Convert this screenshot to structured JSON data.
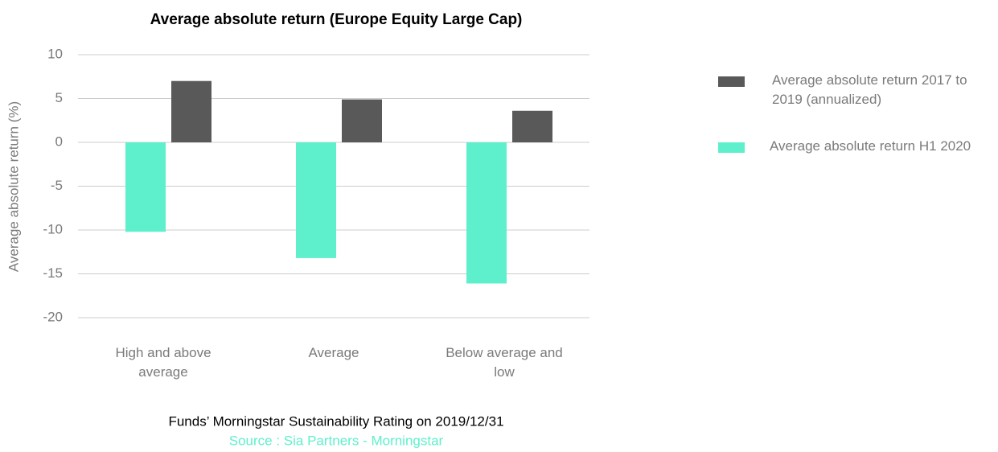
{
  "chart_data": {
    "type": "bar",
    "title": "Average absolute return (Europe Equity Large Cap)",
    "y_label": "Average absolute return  (%)",
    "x_label": "Funds’ Morningstar Sustainability Rating on 2019/12/31",
    "source": "Source : Sia Partners - Morningstar",
    "categories": [
      "High and above average",
      "Average",
      "Below average and low"
    ],
    "series": [
      {
        "name": "Average absolute return 2017 to 2019 (annualized)",
        "color": "#595959",
        "values": [
          7.0,
          4.9,
          3.6
        ]
      },
      {
        "name": "Average absolute return H1 2020",
        "color": "#5ef0cc",
        "values": [
          -10.2,
          -13.2,
          -16.1
        ]
      }
    ],
    "ylim": [
      -20,
      10
    ],
    "yticks": [
      10,
      5,
      0,
      -5,
      -10,
      -15,
      -20
    ],
    "grid": true,
    "legend": "right"
  }
}
